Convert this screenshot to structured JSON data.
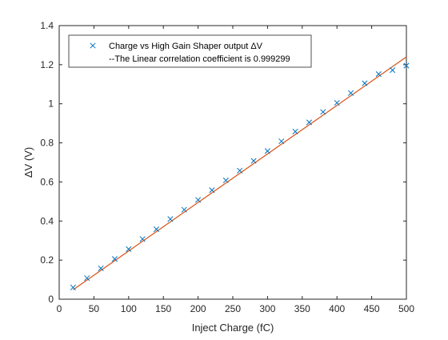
{
  "chart_data": {
    "type": "scatter",
    "xlabel": "Inject Charge (fC)",
    "ylabel": "ΔV (V)",
    "xlim": [
      0,
      500
    ],
    "ylim": [
      0,
      1.4
    ],
    "x_ticks": [
      0,
      50,
      100,
      150,
      200,
      250,
      300,
      350,
      400,
      450,
      500
    ],
    "y_ticks": [
      0,
      0.2,
      0.4,
      0.6,
      0.8,
      1,
      1.2,
      1.4
    ],
    "grid": false,
    "legend_position": "top-left",
    "series": [
      {
        "name": "Charge vs High Gain Shaper output ΔV",
        "marker": "x",
        "color": "#0072BD",
        "x": [
          20,
          40,
          60,
          80,
          100,
          120,
          140,
          160,
          180,
          200,
          220,
          240,
          260,
          280,
          300,
          320,
          340,
          360,
          380,
          400,
          420,
          440,
          460,
          480,
          500
        ],
        "y": [
          0.06,
          0.108,
          0.158,
          0.206,
          0.256,
          0.308,
          0.358,
          0.41,
          0.458,
          0.508,
          0.558,
          0.608,
          0.658,
          0.708,
          0.758,
          0.808,
          0.858,
          0.905,
          0.958,
          1.005,
          1.055,
          1.105,
          1.152,
          1.172,
          1.195
        ]
      },
      {
        "name": "--The Linear correlation coefficient is 0.999299",
        "type": "line",
        "color": "#D95319",
        "x": [
          20,
          500
        ],
        "y": [
          0.048,
          1.24
        ]
      }
    ]
  }
}
